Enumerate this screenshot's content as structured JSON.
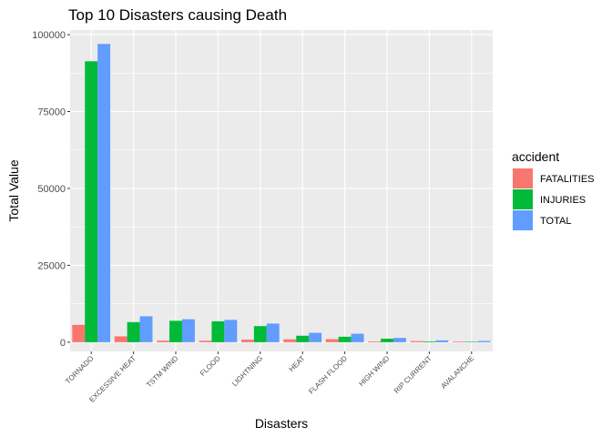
{
  "chart_data": {
    "type": "bar",
    "title": "Top 10 Disasters causing Death",
    "xlabel": "Disasters",
    "ylabel": "Total Value",
    "categories": [
      "TORNADO",
      "EXCESSIVE HEAT",
      "TSTM WIND",
      "FLOOD",
      "LIGHTNING",
      "HEAT",
      "FLASH FLOOD",
      "HIGH WIND",
      "RIP CURRENT",
      "AVALANCHE"
    ],
    "series": [
      {
        "name": "FATALITIES",
        "color": "#F8766D",
        "values": [
          5633,
          1903,
          504,
          470,
          816,
          937,
          978,
          248,
          368,
          224
        ]
      },
      {
        "name": "INJURIES",
        "color": "#00BA38",
        "values": [
          91346,
          6525,
          6957,
          6789,
          5230,
          2100,
          1777,
          1137,
          232,
          170
        ]
      },
      {
        "name": "TOTAL",
        "color": "#619CFF",
        "values": [
          96979,
          8428,
          7461,
          7259,
          6046,
          3037,
          2755,
          1385,
          600,
          394
        ]
      }
    ],
    "ylim": [
      -3000,
      101500
    ],
    "yticks": [
      0,
      25000,
      50000,
      75000,
      100000
    ],
    "ytick_labels": [
      "0",
      "25000",
      "50000",
      "75000",
      "100000"
    ],
    "legend": {
      "title": "accident",
      "position": "right"
    },
    "grid": true,
    "panel_background": "#EBEBEB"
  }
}
